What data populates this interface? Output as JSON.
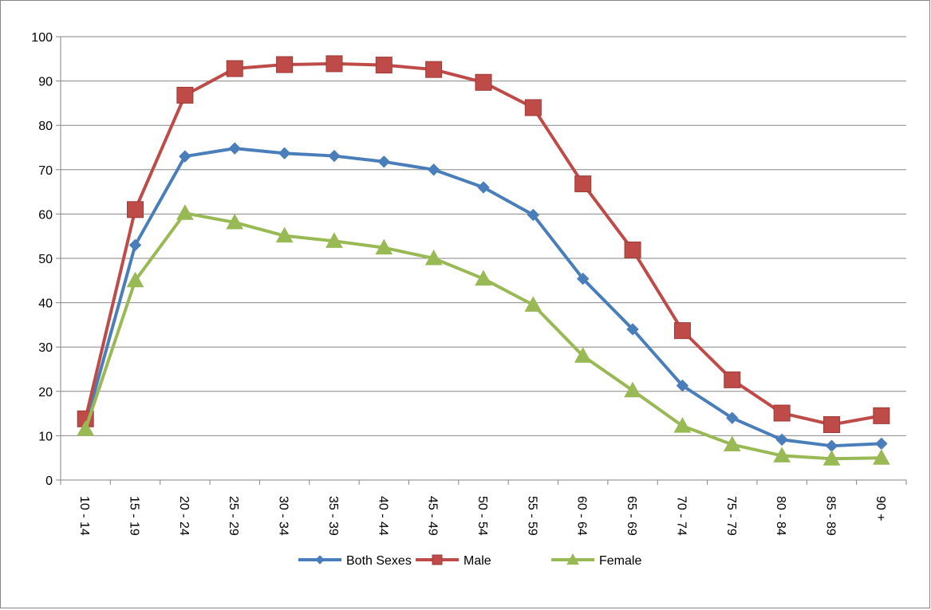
{
  "chart_data": {
    "type": "line",
    "title": "",
    "xlabel": "",
    "ylabel": "",
    "categories": [
      "10 - 14",
      "15 - 19",
      "20 - 24",
      "25 - 29",
      "30 - 34",
      "35 - 39",
      "40 - 44",
      "45 - 49",
      "50 - 54",
      "55 - 59",
      "60 - 64",
      "65 - 69",
      "70 - 74",
      "75 - 79",
      "80 - 84",
      "85 - 89",
      "90 +"
    ],
    "ylim": [
      0,
      100
    ],
    "yticks": [
      "0",
      "10",
      "20",
      "30",
      "40",
      "50",
      "60",
      "70",
      "80",
      "90",
      "100"
    ],
    "grid": true,
    "legend_position": "bottom",
    "series": [
      {
        "name": "Both Sexes",
        "color": "#4a7ebb",
        "marker": "diamond",
        "values": [
          12.5,
          53,
          73,
          74.8,
          73.7,
          73.1,
          71.8,
          70,
          66,
          59.8,
          45.4,
          34,
          21.3,
          14,
          9.1,
          7.7,
          8.2
        ]
      },
      {
        "name": "Male",
        "color": "#be4b48",
        "marker": "square",
        "values": [
          13.8,
          61,
          86.8,
          92.8,
          93.7,
          93.9,
          93.6,
          92.6,
          89.7,
          84,
          66.8,
          51.9,
          33.7,
          22.6,
          15.1,
          12.5,
          14.5
        ]
      },
      {
        "name": "Female",
        "color": "#98b954",
        "marker": "triangle",
        "values": [
          11.5,
          45,
          60.2,
          58.1,
          55.1,
          53.9,
          52.4,
          50,
          45.4,
          39.5,
          28,
          20.2,
          12.2,
          8,
          5.5,
          4.8,
          5
        ]
      }
    ]
  }
}
